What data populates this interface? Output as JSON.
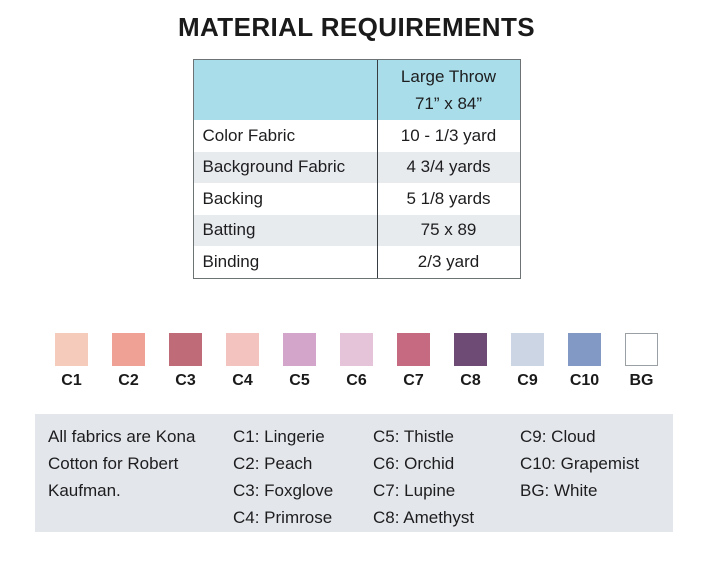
{
  "title": "MATERIAL REQUIREMENTS",
  "table": {
    "header": {
      "line1": "Large Throw",
      "line2": "71” x 84”"
    },
    "rows": [
      {
        "label": "Color Fabric",
        "value": "10 - 1/3 yard"
      },
      {
        "label": "Background Fabric",
        "value": "4 3/4 yards"
      },
      {
        "label": "Backing",
        "value": "5 1/8 yards"
      },
      {
        "label": "Batting",
        "value": "75 x 89"
      },
      {
        "label": "Binding",
        "value": "2/3 yard"
      }
    ]
  },
  "swatches": [
    {
      "code": "C1",
      "color": "#f5cbbb"
    },
    {
      "code": "C2",
      "color": "#efa195"
    },
    {
      "code": "C3",
      "color": "#c06c78"
    },
    {
      "code": "C4",
      "color": "#f3c3bf"
    },
    {
      "code": "C5",
      "color": "#d4a5cb"
    },
    {
      "code": "C6",
      "color": "#e5c4da"
    },
    {
      "code": "C7",
      "color": "#c66a82"
    },
    {
      "code": "C8",
      "color": "#6e4b74"
    },
    {
      "code": "C9",
      "color": "#cbd5e3"
    },
    {
      "code": "C10",
      "color": "#8298c5"
    },
    {
      "code": "BG",
      "color": "#ffffff"
    }
  ],
  "legend": {
    "note": "All fabrics are Kona Cotton for Robert Kaufman.",
    "columns": [
      [
        "C1: Lingerie",
        "C2: Peach",
        "C3: Foxglove",
        "C4: Primrose"
      ],
      [
        "C5: Thistle",
        "C6: Orchid",
        "C7: Lupine",
        "C8: Amethyst"
      ],
      [
        "C9: Cloud",
        "C10: Grapemist",
        "BG: White"
      ]
    ]
  },
  "colors": {
    "header_bg": "#a9dde9",
    "alt_row_bg": "#e8ebee",
    "legend_bg": "#e3e6ea"
  }
}
